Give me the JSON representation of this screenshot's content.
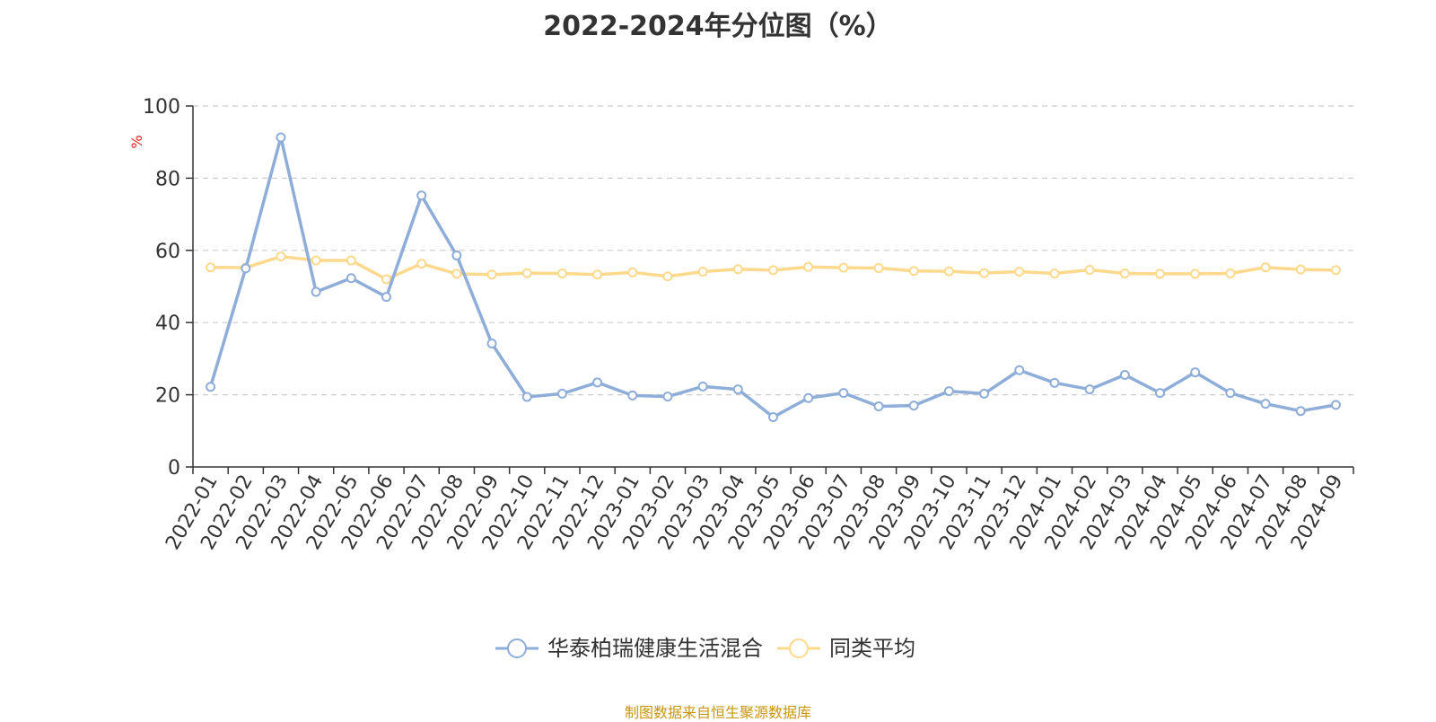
{
  "chart_data": {
    "type": "line",
    "title": "2022-2024年分位图（%）",
    "ylabel": "%",
    "xlabel": "",
    "ylim": [
      0,
      100
    ],
    "yticks": [
      0,
      20,
      40,
      60,
      80,
      100
    ],
    "grid": true,
    "legend_position": "bottom",
    "categories": [
      "2022-01",
      "2022-02",
      "2022-03",
      "2022-04",
      "2022-05",
      "2022-06",
      "2022-07",
      "2022-08",
      "2022-09",
      "2022-10",
      "2022-11",
      "2022-12",
      "2023-01",
      "2023-02",
      "2023-03",
      "2023-04",
      "2023-05",
      "2023-06",
      "2023-07",
      "2023-08",
      "2023-09",
      "2023-10",
      "2023-11",
      "2023-12",
      "2024-01",
      "2024-02",
      "2024-03",
      "2024-04",
      "2024-05",
      "2024-06",
      "2024-07",
      "2024-08",
      "2024-09"
    ],
    "series": [
      {
        "name": "华泰柏瑞健康生活混合",
        "color": "#8eadd8",
        "values": [
          22.2,
          55.0,
          91.3,
          48.5,
          52.3,
          47.1,
          75.2,
          58.6,
          34.2,
          19.4,
          20.3,
          23.4,
          19.8,
          19.5,
          22.3,
          21.5,
          13.8,
          19.1,
          20.5,
          16.8,
          17.0,
          21.0,
          20.3,
          26.8,
          23.3,
          21.5,
          25.5,
          20.5,
          26.2,
          20.5,
          17.5,
          15.5,
          17.2
        ]
      },
      {
        "name": "同类平均",
        "color": "#fdd98e",
        "values": [
          55.3,
          55.2,
          58.3,
          57.2,
          57.2,
          52.0,
          56.3,
          53.5,
          53.3,
          53.7,
          53.6,
          53.3,
          53.9,
          52.8,
          54.1,
          54.8,
          54.5,
          55.4,
          55.2,
          55.1,
          54.3,
          54.2,
          53.7,
          54.1,
          53.6,
          54.6,
          53.6,
          53.5,
          53.5,
          53.6,
          55.3,
          54.7,
          54.5
        ]
      }
    ]
  },
  "source_note": "制图数据来自恒生聚源数据库"
}
